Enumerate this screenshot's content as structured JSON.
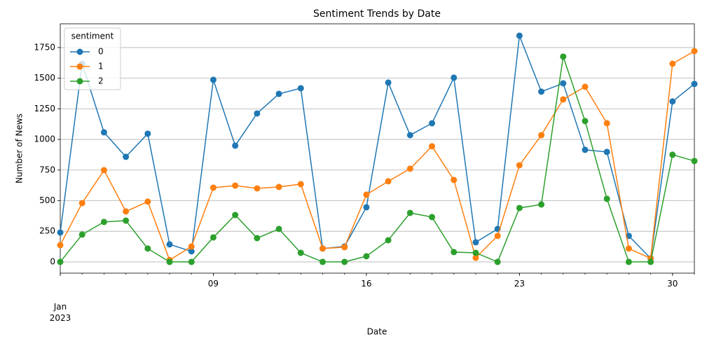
{
  "chart_data": {
    "type": "line",
    "title": "Sentiment Trends by Date",
    "xlabel": "Date",
    "ylabel": "Number of News",
    "x": [
      "2023-01-02",
      "2023-01-03",
      "2023-01-04",
      "2023-01-05",
      "2023-01-06",
      "2023-01-07",
      "2023-01-08",
      "2023-01-09",
      "2023-01-10",
      "2023-01-11",
      "2023-01-12",
      "2023-01-13",
      "2023-01-14",
      "2023-01-15",
      "2023-01-16",
      "2023-01-17",
      "2023-01-18",
      "2023-01-19",
      "2023-01-20",
      "2023-01-21",
      "2023-01-22",
      "2023-01-23",
      "2023-01-24",
      "2023-01-25",
      "2023-01-26",
      "2023-01-27",
      "2023-01-28",
      "2023-01-29",
      "2023-01-30",
      "2023-01-31"
    ],
    "series": [
      {
        "name": "0",
        "color": "#1f77b4",
        "values": [
          240,
          1618,
          1058,
          858,
          1047,
          143,
          86,
          1487,
          949,
          1212,
          1372,
          1418,
          109,
          126,
          446,
          1464,
          1035,
          1132,
          1504,
          160,
          269,
          1847,
          1390,
          1458,
          915,
          898,
          212,
          29,
          1310,
          1453
        ]
      },
      {
        "name": "1",
        "color": "#ff7f0e",
        "values": [
          137,
          480,
          749,
          412,
          492,
          15,
          126,
          606,
          623,
          600,
          612,
          635,
          109,
          120,
          549,
          658,
          761,
          944,
          669,
          34,
          212,
          789,
          1035,
          1327,
          1430,
          1132,
          109,
          29,
          1618,
          1721
        ]
      },
      {
        "name": "2",
        "color": "#2ca02c",
        "values": [
          0,
          223,
          326,
          337,
          109,
          0,
          0,
          200,
          383,
          194,
          269,
          74,
          0,
          0,
          46,
          177,
          400,
          366,
          80,
          74,
          0,
          440,
          469,
          1676,
          1150,
          515,
          0,
          0,
          875,
          824
        ]
      }
    ],
    "legend_title": "sentiment",
    "legend": "upper left",
    "xlim": [
      "2023-01-02",
      "2023-01-31"
    ],
    "xticks": [
      {
        "value": "2023-01-02",
        "label": "Jan\n2023"
      },
      {
        "value": "2023-01-09",
        "label": "09"
      },
      {
        "value": "2023-01-16",
        "label": "16"
      },
      {
        "value": "2023-01-23",
        "label": "23"
      },
      {
        "value": "2023-01-30",
        "label": "30"
      }
    ],
    "ylim": [
      -92,
      1944
    ],
    "yticks": [
      0,
      250,
      500,
      750,
      1000,
      1250,
      1500,
      1750
    ],
    "grid": "y"
  }
}
